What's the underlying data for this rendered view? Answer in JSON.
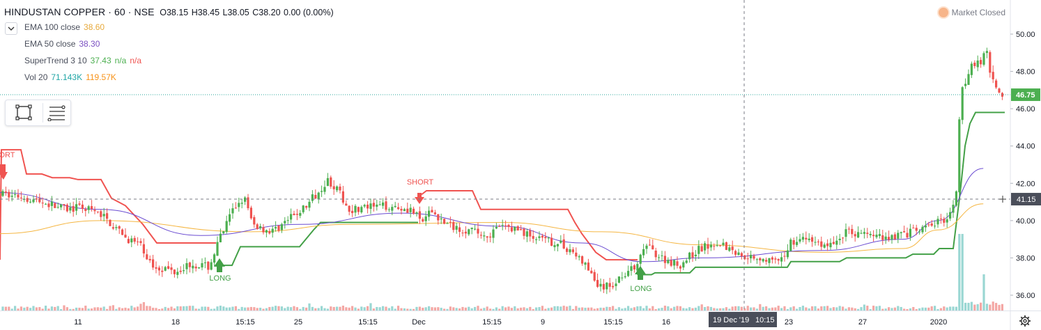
{
  "header": {
    "symbol": "HINDUSTAN COPPER · 60 · NSE",
    "open": "O38.15",
    "high": "H38.45",
    "low": "L38.05",
    "close": "C38.20",
    "change": "0.00 (0.00%)"
  },
  "indicators": [
    {
      "label": "EMA 100 close",
      "values": [
        "38.60"
      ],
      "colors": [
        "#e7a93b"
      ]
    },
    {
      "label": "EMA 50 close",
      "values": [
        "38.30"
      ],
      "colors": [
        "#7a4fc1"
      ]
    },
    {
      "label": "SuperTrend 3 10",
      "values": [
        "37.43",
        "n/a",
        "n/a"
      ],
      "colors": [
        "#4caf50",
        "#4caf50",
        "#ef5350"
      ]
    },
    {
      "label": "Vol 20",
      "values": [
        "71.143K",
        "119.57K"
      ],
      "colors": [
        "#22a6a6",
        "#f7931a"
      ]
    }
  ],
  "market_status": "Market Closed",
  "crosshair": {
    "date_label": "19 Dec '19",
    "time_label": "10:15",
    "price_label": "41.15"
  },
  "last_price_label": "46.75",
  "signals": {
    "short": "SHORT",
    "short_cut": "ORT",
    "long": "LONG"
  },
  "colors": {
    "up": "#26a69a",
    "up_body": "#4caf50",
    "down": "#ef5350",
    "ema100": "#f5b642",
    "ema50": "#6a4bd1",
    "st_up": "#43a047",
    "st_down": "#f05350",
    "vol_up": "#9ad7d3",
    "vol_down": "#f4a7a4"
  },
  "chart_data": {
    "type": "candlestick",
    "y_ticks": [
      "36.00",
      "38.00",
      "40.00",
      "42.00",
      "44.00",
      "46.00",
      "48.00",
      "50.00"
    ],
    "y_range": [
      35.5,
      51.0
    ],
    "x_ticks": [
      "11",
      "18",
      "15:15",
      "25",
      "15:15",
      "Dec",
      "15:15",
      "9",
      "15:15",
      "16",
      "23",
      "27",
      "2020"
    ],
    "series": [
      {
        "name": "EMA 100 close",
        "anchors": [
          [
            0,
            39.3
          ],
          [
            0.1,
            40.0
          ],
          [
            0.25,
            39.4
          ],
          [
            0.35,
            39.8
          ],
          [
            0.5,
            39.9
          ],
          [
            0.6,
            39.4
          ],
          [
            0.7,
            38.7
          ],
          [
            0.82,
            38.3
          ],
          [
            0.9,
            38.5
          ],
          [
            0.935,
            39.5
          ],
          [
            0.98,
            40.9
          ]
        ]
      },
      {
        "name": "EMA 50 close",
        "anchors": [
          [
            0,
            41.5
          ],
          [
            0.1,
            40.6
          ],
          [
            0.2,
            39.2
          ],
          [
            0.3,
            39.8
          ],
          [
            0.4,
            40.4
          ],
          [
            0.5,
            39.7
          ],
          [
            0.58,
            38.8
          ],
          [
            0.64,
            37.8
          ],
          [
            0.7,
            38.0
          ],
          [
            0.82,
            38.4
          ],
          [
            0.9,
            39.0
          ],
          [
            0.935,
            40.0
          ],
          [
            0.98,
            42.8
          ]
        ]
      }
    ]
  }
}
